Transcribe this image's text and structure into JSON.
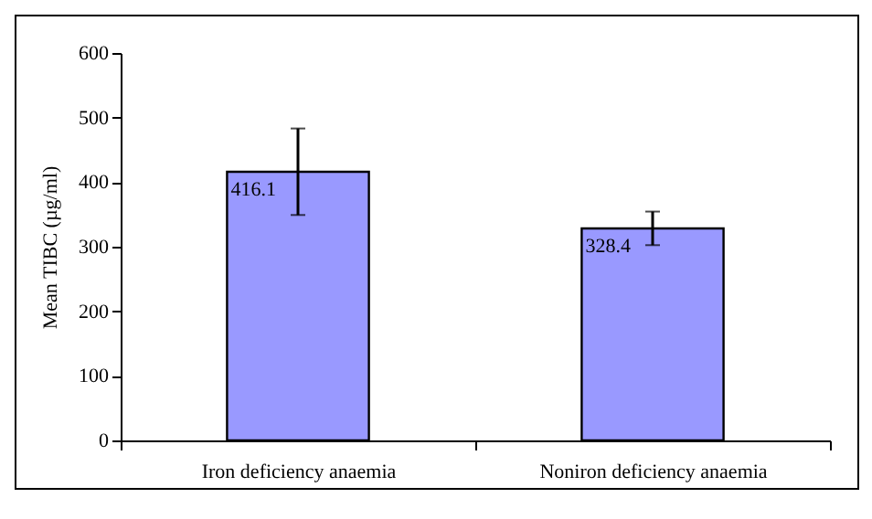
{
  "chart_data": {
    "type": "bar",
    "ylabel": "Mean TIBC (µg/ml)",
    "categories": [
      "Iron deficiency anaemia",
      "Noniron deficiency anaemia"
    ],
    "values": [
      416.1,
      328.4
    ],
    "errors": [
      67,
      26
    ],
    "color": "#9999ff",
    "ylim": [
      0,
      600
    ],
    "yticks": [
      0,
      100,
      200,
      300,
      400,
      500,
      600
    ],
    "data_labels": true
  }
}
